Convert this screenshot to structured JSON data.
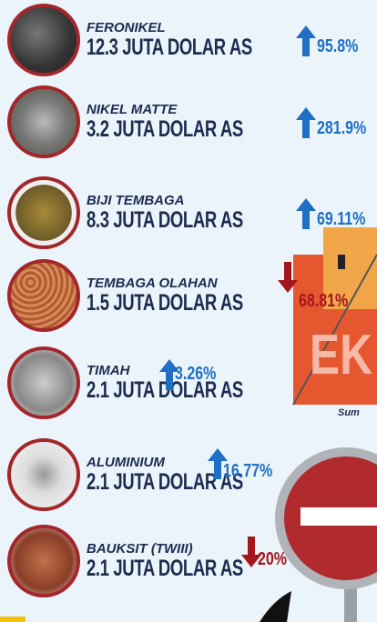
{
  "items": [
    {
      "name": "FERONIKEL",
      "value": "12.3 JUTA DOLAR AS",
      "change": "95.8%",
      "direction": "up"
    },
    {
      "name": "NIKEL MATTE",
      "value": "3.2 JUTA DOLAR AS",
      "change": "281.9%",
      "direction": "up"
    },
    {
      "name": "BIJI TEMBAGA",
      "value": "8.3 JUTA DOLAR AS",
      "change": "69.11%",
      "direction": "up"
    },
    {
      "name": "TEMBAGA OLAHAN",
      "value": "1.5 JUTA DOLAR AS",
      "change": "68.81%",
      "direction": "down"
    },
    {
      "name": "TIMAH",
      "value": "2.1 JUTA DOLAR AS",
      "change": "3.26%",
      "direction": "up"
    },
    {
      "name": "ALUMINIUM",
      "value": "2.1 JUTA DOLAR AS",
      "change": "16.77%",
      "direction": "up"
    },
    {
      "name": "BAUKSIT (TWIII)",
      "value": "2.1 JUTA DOLAR AS",
      "change": "20%",
      "direction": "down"
    }
  ],
  "container_text": "EK",
  "source_text": "Sum"
}
